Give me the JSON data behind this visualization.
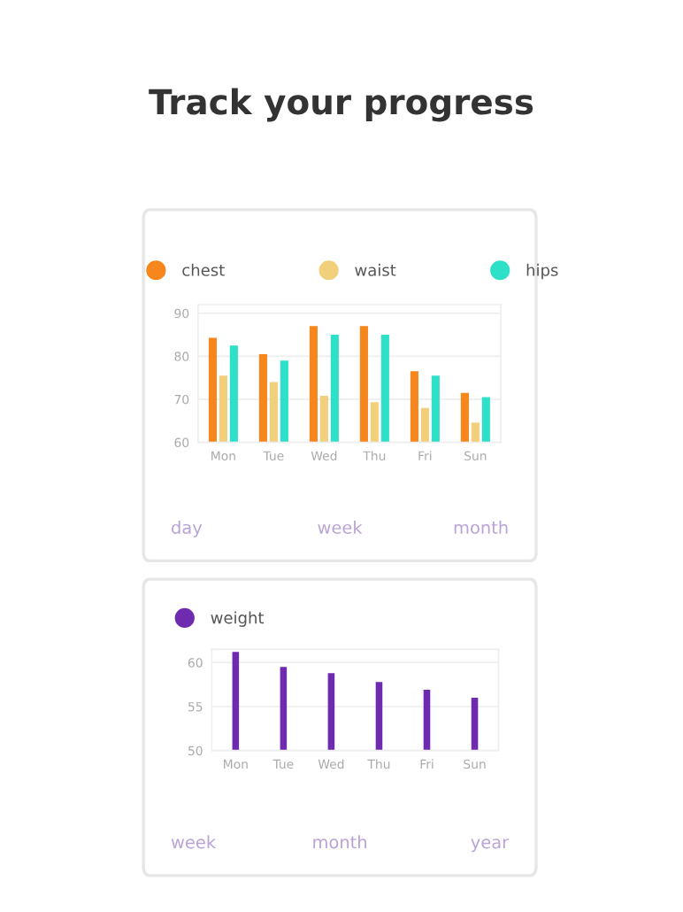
{
  "chart_data": [
    {
      "type": "bar",
      "title": "Track your progress",
      "categories": [
        "Mon",
        "Tue",
        "Wed",
        "Thu",
        "Fri",
        "Sun"
      ],
      "series": [
        {
          "name": "chest",
          "color": "#f7861c",
          "values": [
            84.3,
            80.5,
            87,
            87,
            76.5,
            71.5
          ]
        },
        {
          "name": "waist",
          "color": "#f2cf7a",
          "values": [
            75.5,
            74,
            70.8,
            69.3,
            68,
            64.6
          ]
        },
        {
          "name": "hips",
          "color": "#2ee0c8",
          "values": [
            82.5,
            79,
            85,
            85,
            75.5,
            70.5
          ]
        }
      ],
      "ylim": [
        60,
        92
      ],
      "yticks": [
        60,
        70,
        80,
        90
      ],
      "grid": "y",
      "legend": "top",
      "annotations": [
        "day",
        "week",
        "month"
      ]
    },
    {
      "type": "bar",
      "categories": [
        "Mon",
        "Tue",
        "Wed",
        "Thu",
        "Fri",
        "Sun"
      ],
      "series": [
        {
          "name": "weight",
          "color": "#6e2bb0",
          "values": [
            61.2,
            59.5,
            58.8,
            57.8,
            56.9,
            56
          ]
        }
      ],
      "ylim": [
        50,
        61.5
      ],
      "yticks": [
        50,
        55,
        60
      ],
      "grid": "y",
      "legend": "top left",
      "annotations": [
        "week",
        "month",
        "year"
      ]
    }
  ]
}
